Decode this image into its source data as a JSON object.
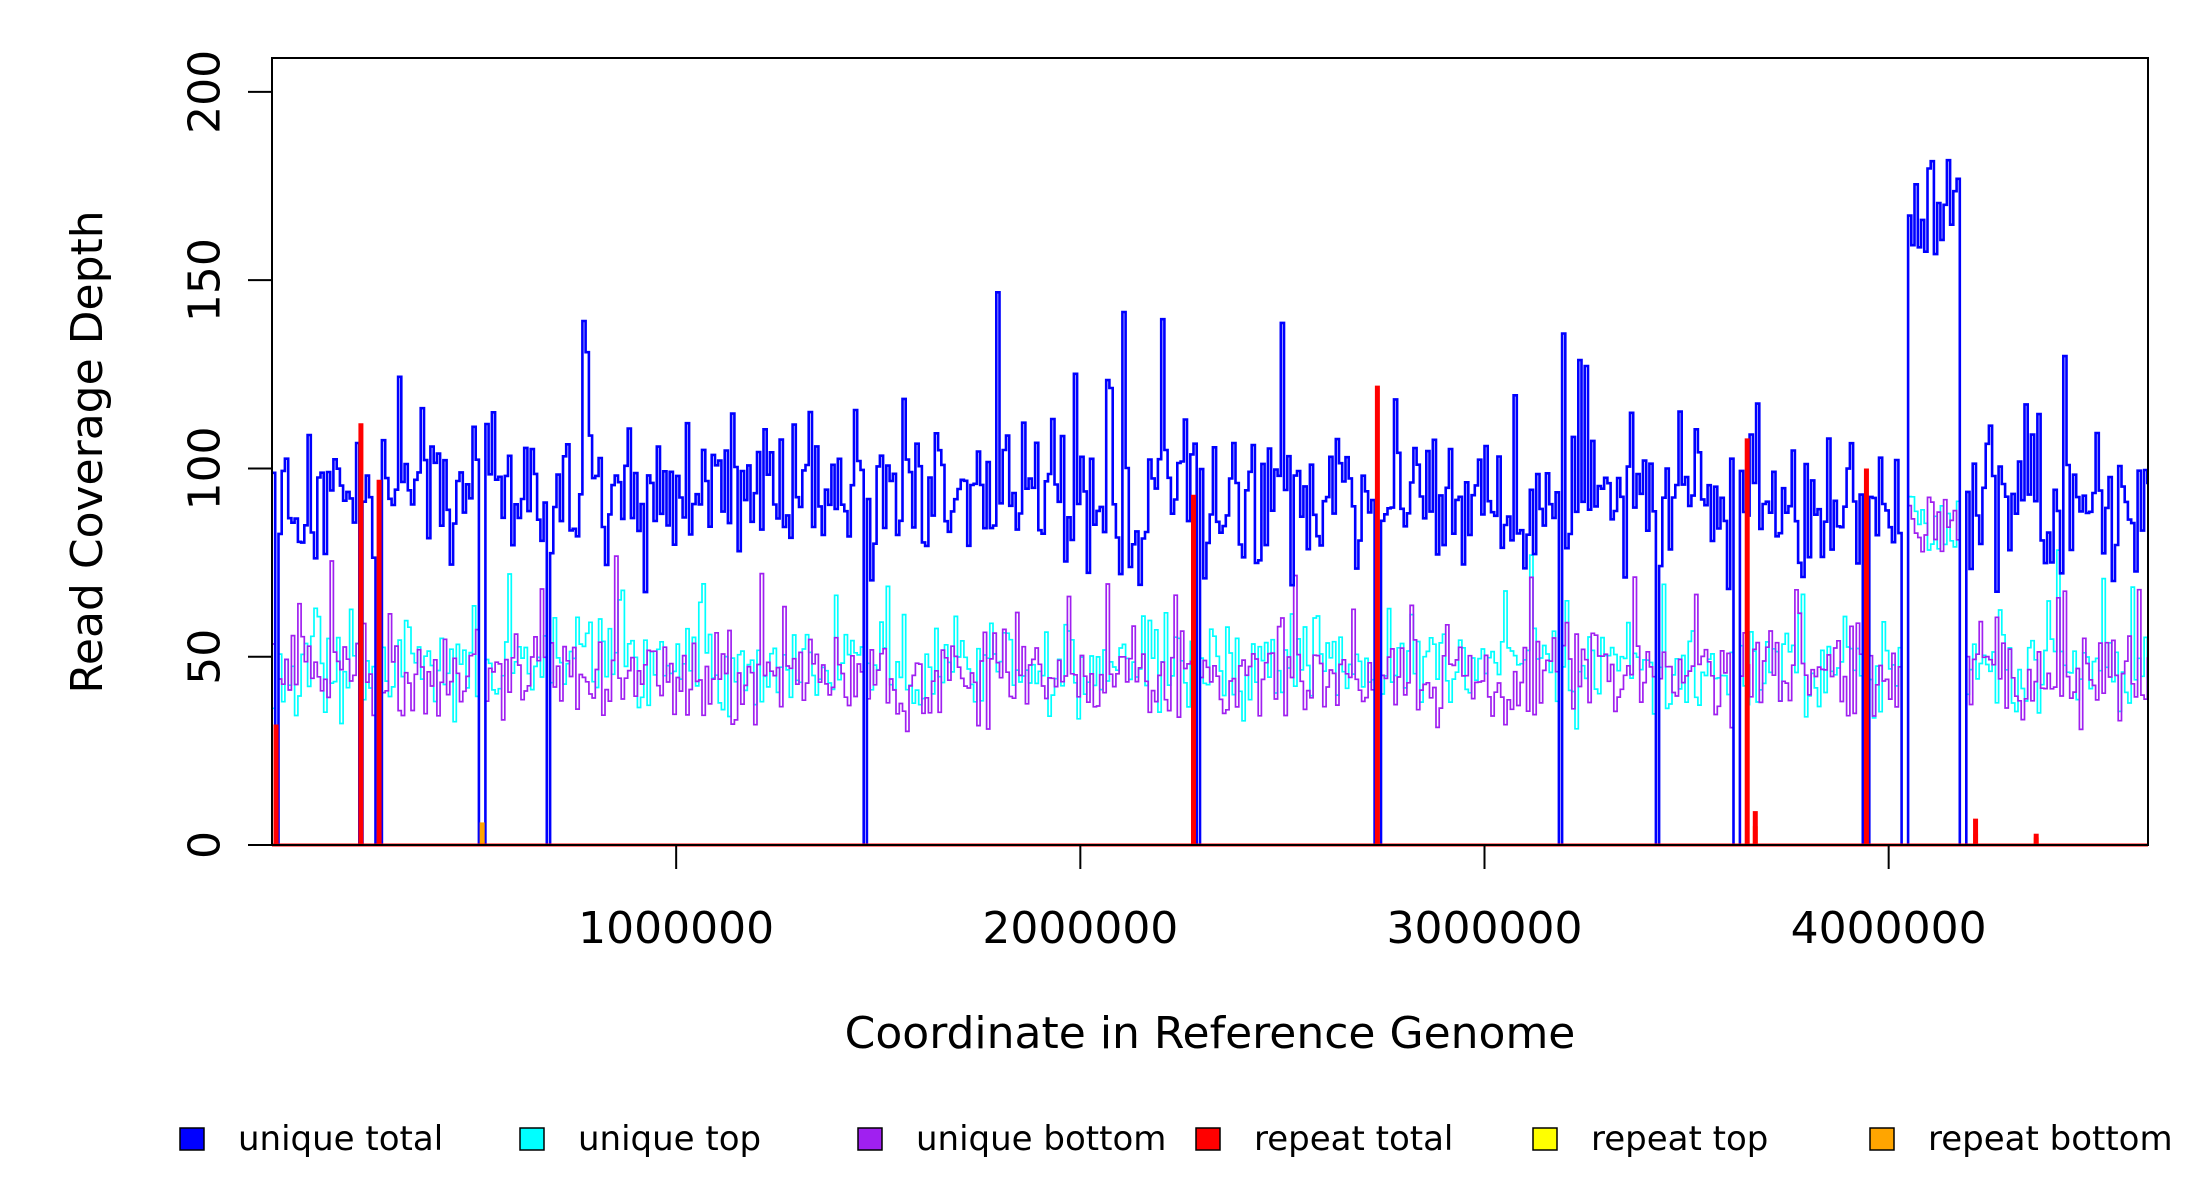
{
  "chart_data": {
    "type": "line",
    "title": "",
    "xlabel": "Coordinate in Reference Genome",
    "ylabel": "Read Coverage Depth",
    "xlim": [
      0,
      4641652
    ],
    "ylim": [
      0,
      209
    ],
    "x_ticks": [
      1000000,
      2000000,
      3000000,
      4000000
    ],
    "x_tick_labels": [
      "1000000",
      "2000000",
      "3000000",
      "4000000"
    ],
    "y_ticks": [
      0,
      50,
      100,
      150,
      200
    ],
    "y_tick_labels": [
      "0",
      "50",
      "100",
      "150",
      "200"
    ],
    "grid": false,
    "legend_position": "bottom",
    "series": [
      {
        "name": "unique total",
        "color": "#0000ff",
        "baseline": 92,
        "amplitude": 22,
        "overrides": [
          [
            4040000,
            4185000,
            170
          ]
        ]
      },
      {
        "name": "unique top",
        "color": "#00ffff",
        "baseline": 47,
        "amplitude": 13,
        "overrides": [
          [
            4040000,
            4185000,
            85
          ]
        ]
      },
      {
        "name": "unique bottom",
        "color": "#a020f0",
        "baseline": 45,
        "amplitude": 13,
        "overrides": [
          [
            4040000,
            4185000,
            85
          ]
        ]
      },
      {
        "name": "repeat total",
        "color": "#ff0000",
        "points": [
          [
            10000,
            32
          ],
          [
            220000,
            112
          ],
          [
            265000,
            97
          ],
          [
            2280000,
            93
          ],
          [
            2735000,
            122
          ],
          [
            3650000,
            108
          ],
          [
            3945000,
            100
          ],
          [
            3670000,
            9
          ],
          [
            4215000,
            7
          ],
          [
            4365000,
            3
          ]
        ]
      },
      {
        "name": "repeat top",
        "color": "#ffff00",
        "points": []
      },
      {
        "name": "repeat bottom",
        "color": "#ffa500",
        "points": [
          [
            10000,
            12
          ],
          [
            520000,
            6
          ],
          [
            3670000,
            5
          ],
          [
            4215000,
            3
          ],
          [
            4365000,
            2
          ]
        ]
      }
    ],
    "dropouts": [
      10000,
      220000,
      265000,
      520000,
      685000,
      1470000,
      2290000,
      2735000,
      3190000,
      3430000,
      3625000,
      3945000,
      4040000,
      4185000
    ]
  }
}
